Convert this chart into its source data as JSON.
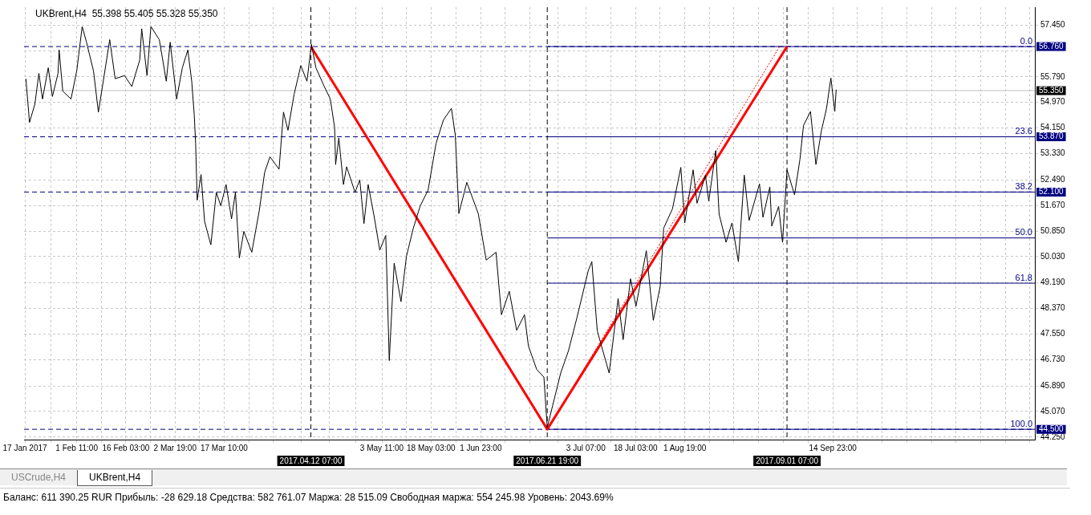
{
  "chart_data": {
    "type": "line",
    "title": "UKBrent,H4  55.398 55.405 55.328 55.350",
    "xlim": [
      "2017-01-16T18:00",
      "2017-11-14T05:00"
    ],
    "xticks": [
      {
        "value": "2017-01-17",
        "label": "17 Jan 2017"
      },
      {
        "value": "2017-01-24T18:00",
        "label": null
      },
      {
        "value": "2017-02-01T11:00",
        "label": "1 Feb 11:00"
      },
      {
        "value": "2017-02-08T19:00",
        "label": null
      },
      {
        "value": "2017-02-16T03:00",
        "label": "16 Feb 03:00"
      },
      {
        "value": "2017-02-23T11:00",
        "label": null
      },
      {
        "value": "2017-03-02T19:00",
        "label": "2 Mar 19:00"
      },
      {
        "value": "2017-03-10T02:00",
        "label": null
      },
      {
        "value": "2017-03-17T10:00",
        "label": "17 Mar 10:00"
      },
      {
        "value": "2017-03-24T18:00",
        "label": null
      },
      {
        "value": "2017-04-01T03:00",
        "label": null
      },
      {
        "value": "2017-04-09T11:00",
        "label": null
      },
      {
        "value": "2017-04-17T19:00",
        "label": null
      },
      {
        "value": "2017-04-25T15:00",
        "label": null
      },
      {
        "value": "2017-05-03T11:00",
        "label": "3 May 11:00"
      },
      {
        "value": "2017-05-10T19:00",
        "label": null
      },
      {
        "value": "2017-05-18T03:00",
        "label": "18 May 03:00"
      },
      {
        "value": "2017-05-25T13:00",
        "label": null
      },
      {
        "value": "2017-06-01T23:00",
        "label": "1 Jun 23:00"
      },
      {
        "value": "2017-06-09T07:00",
        "label": null
      },
      {
        "value": "2017-06-16T15:00",
        "label": null
      },
      {
        "value": "2017-06-24T23:00",
        "label": null
      },
      {
        "value": "2017-07-03T07:00",
        "label": "3 Jul 07:00"
      },
      {
        "value": "2017-07-10T17:00",
        "label": null
      },
      {
        "value": "2017-07-18T03:00",
        "label": "18 Jul 03:00"
      },
      {
        "value": "2017-07-25T11:00",
        "label": null
      },
      {
        "value": "2017-08-01T19:00",
        "label": "1 Aug 19:00"
      },
      {
        "value": "2017-08-09T03:00",
        "label": null
      },
      {
        "value": "2017-08-16T11:00",
        "label": null
      },
      {
        "value": "2017-08-23T19:00",
        "label": null
      },
      {
        "value": "2017-08-31T03:00",
        "label": null
      },
      {
        "value": "2017-09-07T13:00",
        "label": null
      },
      {
        "value": "2017-09-14T23:00",
        "label": "14 Sep 23:00"
      },
      {
        "value": "2017-09-22T07:00",
        "label": null
      },
      {
        "value": "2017-09-29T16:00",
        "label": null
      },
      {
        "value": "2017-10-07T00:00",
        "label": null
      },
      {
        "value": "2017-10-14T09:00",
        "label": null
      },
      {
        "value": "2017-10-21T17:00",
        "label": null
      },
      {
        "value": "2017-10-29T01:00",
        "label": null
      },
      {
        "value": "2017-11-05T10:00",
        "label": null
      },
      {
        "value": "2017-11-12T18:00",
        "label": null
      }
    ],
    "ylim": [
      44.17,
      58.02
    ],
    "yticks": [
      {
        "value": 57.45,
        "label": "57.450"
      },
      {
        "value": 56.63,
        "label": null
      },
      {
        "value": 55.79,
        "label": "55.790"
      },
      {
        "value": 54.97,
        "label": "54.970"
      },
      {
        "value": 54.15,
        "label": "54.150"
      },
      {
        "value": 53.33,
        "label": "53.330"
      },
      {
        "value": 52.49,
        "label": "52.490"
      },
      {
        "value": 51.67,
        "label": "51.670"
      },
      {
        "value": 50.85,
        "label": "50.850"
      },
      {
        "value": 50.03,
        "label": "50.030"
      },
      {
        "value": 49.19,
        "label": "49.190"
      },
      {
        "value": 48.37,
        "label": "48.370"
      },
      {
        "value": 47.55,
        "label": "47.550"
      },
      {
        "value": 46.73,
        "label": "46.730"
      },
      {
        "value": 45.89,
        "label": "45.890"
      },
      {
        "value": 45.07,
        "label": "45.070"
      },
      {
        "value": 44.25,
        "label": "44.250"
      }
    ],
    "grid": true,
    "legend": false,
    "series": [
      {
        "color": "#000000",
        "x": [
          "2017-01-17T07:00",
          "2017-01-18T09:00",
          "2017-01-19T23:00",
          "2017-01-21T04:00",
          "2017-01-22T06:00",
          "2017-01-23T23:00",
          "2017-01-25T05:00",
          "2017-01-26T21:00",
          "2017-01-27T05:00",
          "2017-01-28T07:00",
          "2017-01-30T18:00",
          "2017-02-01T11:00",
          "2017-02-03T02:00",
          "2017-02-04T09:00",
          "2017-02-06T11:00",
          "2017-02-07T22:00",
          "2017-02-09T09:00",
          "2017-02-11T07:00",
          "2017-02-12T22:00",
          "2017-02-15T17:00",
          "2017-02-17T21:00",
          "2017-02-20T06:00",
          "2017-02-20T20:00",
          "2017-02-22T10:00",
          "2017-02-23T14:00",
          "2017-02-26T02:00",
          "2017-02-28T04:00",
          "2017-03-01T08:00",
          "2017-03-03T06:00",
          "2017-03-04T23:00",
          "2017-03-06T14:00",
          "2017-03-07T18:00",
          "2017-03-08T12:00",
          "2017-03-08T22:00",
          "2017-03-09T09:00",
          "2017-03-10T13:00",
          "2017-03-11T14:00",
          "2017-03-13T11:00",
          "2017-03-15T02:00",
          "2017-03-16T10:00",
          "2017-03-18T00:00",
          "2017-03-19T15:00",
          "2017-03-20T19:00",
          "2017-03-21T23:00",
          "2017-03-23T07:00",
          "2017-03-25T16:00",
          "2017-03-27T21:00",
          "2017-03-29T12:00",
          "2017-03-31T02:00",
          "2017-04-02T19:00",
          "2017-04-04T03:00",
          "2017-04-05T11:00",
          "2017-04-07T07:00",
          "2017-04-09T07:00",
          "2017-04-11T03:00",
          "2017-04-12T11:00",
          "2017-04-13T19:00",
          "2017-04-16T07:00",
          "2017-04-18T02:00",
          "2017-04-19T09:00",
          "2017-04-19T16:00",
          "2017-04-20T15:00",
          "2017-04-22T00:00",
          "2017-04-22T23:00",
          "2017-04-25T11:00",
          "2017-04-26T21:00",
          "2017-04-28T03:00",
          "2017-04-29T09:00",
          "2017-05-01T03:00",
          "2017-05-02T20:00",
          "2017-05-04T15:00",
          "2017-05-05T16:00",
          "2017-05-07T03:00",
          "2017-05-09T04:00",
          "2017-05-10T19:00",
          "2017-05-12T20:00",
          "2017-05-14T22:00",
          "2017-05-17T06:00",
          "2017-05-19T15:00",
          "2017-05-21T20:00",
          "2017-05-24T05:00",
          "2017-05-25T09:00",
          "2017-05-26T10:00",
          "2017-05-28T19:00",
          "2017-06-01T05:00",
          "2017-06-03T14:00",
          "2017-06-06T12:00",
          "2017-06-08T03:00",
          "2017-06-10T11:00",
          "2017-06-12T16:00",
          "2017-06-15T00:00",
          "2017-06-16T04:00",
          "2017-06-18T15:00",
          "2017-06-20T19:00",
          "2017-06-21T19:00",
          "2017-06-22T07:00",
          "2017-06-25T19:00",
          "2017-06-28T03:00",
          "2017-06-30T15:00",
          "2017-07-04T01:00",
          "2017-07-05T02:00",
          "2017-07-06T17:00",
          "2017-07-10T06:00",
          "2017-07-12T22:00",
          "2017-07-14T10:00",
          "2017-07-16T15:00",
          "2017-07-18T06:00",
          "2017-07-21T08:00",
          "2017-07-23T10:00",
          "2017-07-25T11:00",
          "2017-07-26T12:00",
          "2017-07-29T03:00",
          "2017-07-31T15:00",
          "2017-08-01T19:00",
          "2017-08-04T07:00",
          "2017-08-05T11:00",
          "2017-08-07T23:00",
          "2017-08-08T23:00",
          "2017-08-11T01:00",
          "2017-08-12T01:00",
          "2017-08-14T03:00",
          "2017-08-15T21:00",
          "2017-08-17T19:00",
          "2017-08-19T13:00",
          "2017-08-21T00:00",
          "2017-08-24T02:00",
          "2017-08-25T03:00",
          "2017-08-27T04:00",
          "2017-08-27T18:00",
          "2017-08-29T19:00",
          "2017-08-30T23:00",
          "2017-09-01T07:00",
          "2017-09-03T13:00",
          "2017-09-05T04:00",
          "2017-09-06T05:00",
          "2017-09-08T07:00",
          "2017-09-09T22:00",
          "2017-09-11T13:00",
          "2017-09-13T01:00",
          "2017-09-14T09:00",
          "2017-09-15T13:00",
          "2017-09-15T23:00"
        ],
        "values": [
          55.73,
          54.33,
          54.91,
          55.9,
          55.08,
          56.08,
          55.16,
          55.9,
          56.65,
          55.33,
          55.08,
          55.98,
          57.4,
          56.9,
          55.98,
          54.66,
          55.65,
          56.98,
          55.73,
          55.83,
          55.48,
          56.33,
          57.33,
          55.83,
          57.4,
          56.98,
          55.65,
          56.9,
          55.08,
          56.08,
          56.65,
          55.65,
          54.58,
          53.66,
          51.84,
          52.66,
          51.16,
          50.41,
          52.09,
          51.66,
          52.34,
          51.24,
          52.09,
          49.99,
          50.84,
          50.17,
          51.49,
          52.73,
          53.23,
          52.83,
          54.66,
          54.08,
          55.23,
          56.15,
          55.65,
          56.83,
          56.08,
          55.48,
          55.08,
          54.16,
          52.98,
          53.83,
          52.34,
          52.91,
          52.09,
          52.49,
          51.09,
          52.34,
          51.34,
          50.24,
          50.71,
          46.7,
          49.82,
          48.59,
          50.04,
          50.94,
          51.66,
          52.16,
          53.66,
          54.41,
          54.78,
          53.91,
          51.41,
          52.41,
          51.41,
          49.92,
          50.17,
          48.17,
          48.92,
          47.67,
          48.17,
          47.17,
          46.42,
          46.17,
          44.55,
          44.78,
          46.3,
          47.02,
          48.07,
          49.59,
          49.87,
          47.65,
          46.3,
          48.69,
          47.37,
          49.32,
          48.44,
          50.22,
          47.99,
          49.07,
          50.94,
          51.56,
          52.89,
          51.11,
          52.81,
          51.74,
          52.64,
          51.81,
          53.43,
          51.39,
          50.49,
          51.11,
          49.87,
          52.64,
          51.19,
          52.36,
          51.29,
          52.26,
          51.01,
          51.64,
          50.49,
          52.81,
          52.01,
          53.16,
          54.23,
          54.68,
          52.98,
          54.06,
          54.76,
          55.75,
          54.68,
          55.38
        ]
      },
      {
        "color": "#ff0000",
        "x": [
          "2017-04-12T07:00",
          "2017-06-21T19:00",
          "2017-09-01T07:00"
        ],
        "values": [
          56.76,
          44.5,
          56.76
        ]
      },
      {
        "color": "#ff0000",
        "line_style": "dotted",
        "x": [
          "2017-06-21T19:00",
          "2017-08-30T02:00"
        ],
        "values": [
          44.5,
          56.76
        ]
      },
      {
        "color": "#000080",
        "x": [
          "2017-06-21T19:00",
          "2017-11-14T05:00"
        ],
        "values": [
          56.76,
          56.76
        ]
      },
      {
        "color": "#000080",
        "x": [
          "2017-06-21T19:00",
          "2017-11-14T05:00"
        ],
        "values": [
          53.87,
          53.87
        ]
      },
      {
        "color": "#000080",
        "x": [
          "2017-06-21T19:00",
          "2017-11-14T05:00"
        ],
        "values": [
          52.1,
          52.1
        ]
      },
      {
        "color": "#000080",
        "x": [
          "2017-06-21T19:00",
          "2017-11-14T05:00"
        ],
        "values": [
          50.63,
          50.63
        ]
      },
      {
        "color": "#000080",
        "x": [
          "2017-06-21T19:00",
          "2017-11-14T05:00"
        ],
        "values": [
          49.18,
          49.18
        ]
      },
      {
        "color": "#000080",
        "x": [
          "2017-06-21T19:00",
          "2017-11-14T05:00"
        ],
        "values": [
          44.5,
          44.5
        ]
      }
    ],
    "ref_lines": [
      {
        "axis": "y",
        "value": 56.76,
        "label": "56.760",
        "color": "#000080",
        "line_style": "dashed"
      },
      {
        "axis": "y",
        "value": 53.87,
        "label": "53.870",
        "color": "#000080",
        "line_style": "dashed"
      },
      {
        "axis": "y",
        "value": 52.1,
        "label": "52.100",
        "color": "#000080",
        "line_style": "dashed"
      },
      {
        "axis": "y",
        "value": 44.5,
        "label": "44.500",
        "color": "#000080",
        "line_style": "dashed"
      },
      {
        "axis": "y",
        "value": 55.35,
        "label": "55.350",
        "color": "#c0c0c0",
        "line_style": "solid"
      },
      {
        "axis": "x",
        "value": "2017-04-12T07:00",
        "label": "2017.04.12 07:00",
        "color": "#000000",
        "line_style": "dashed"
      },
      {
        "axis": "x",
        "value": "2017-06-21T19:00",
        "label": "2017.06.21 19:00",
        "color": "#000000",
        "line_style": "dashed"
      },
      {
        "axis": "x",
        "value": "2017-09-01T07:00",
        "label": "2017.09.01 07:00",
        "color": "#000000",
        "line_style": "dashed"
      }
    ],
    "annotations": [
      {
        "text": "0.0",
        "x": "2017-11-14T05:00",
        "y": 56.76
      },
      {
        "text": "23.6",
        "x": "2017-11-14T05:00",
        "y": 53.87
      },
      {
        "text": "38.2",
        "x": "2017-11-14T05:00",
        "y": 52.1
      },
      {
        "text": "50.0",
        "x": "2017-11-14T05:00",
        "y": 50.63
      },
      {
        "text": "61.8",
        "x": "2017-11-14T05:00",
        "y": 49.18
      },
      {
        "text": "100.0",
        "x": "2017-11-14T05:00",
        "y": 44.5
      },
      "USCrude,H4",
      "UKBrent,H4",
      "Баланс: 611 390.25 RUR  Прибыль: -28 629.18  Средства: 582 761.07  Маржа: 28 515.09  Свободная маржа: 554 245.98  Уровень: 2043.69%"
    ]
  }
}
